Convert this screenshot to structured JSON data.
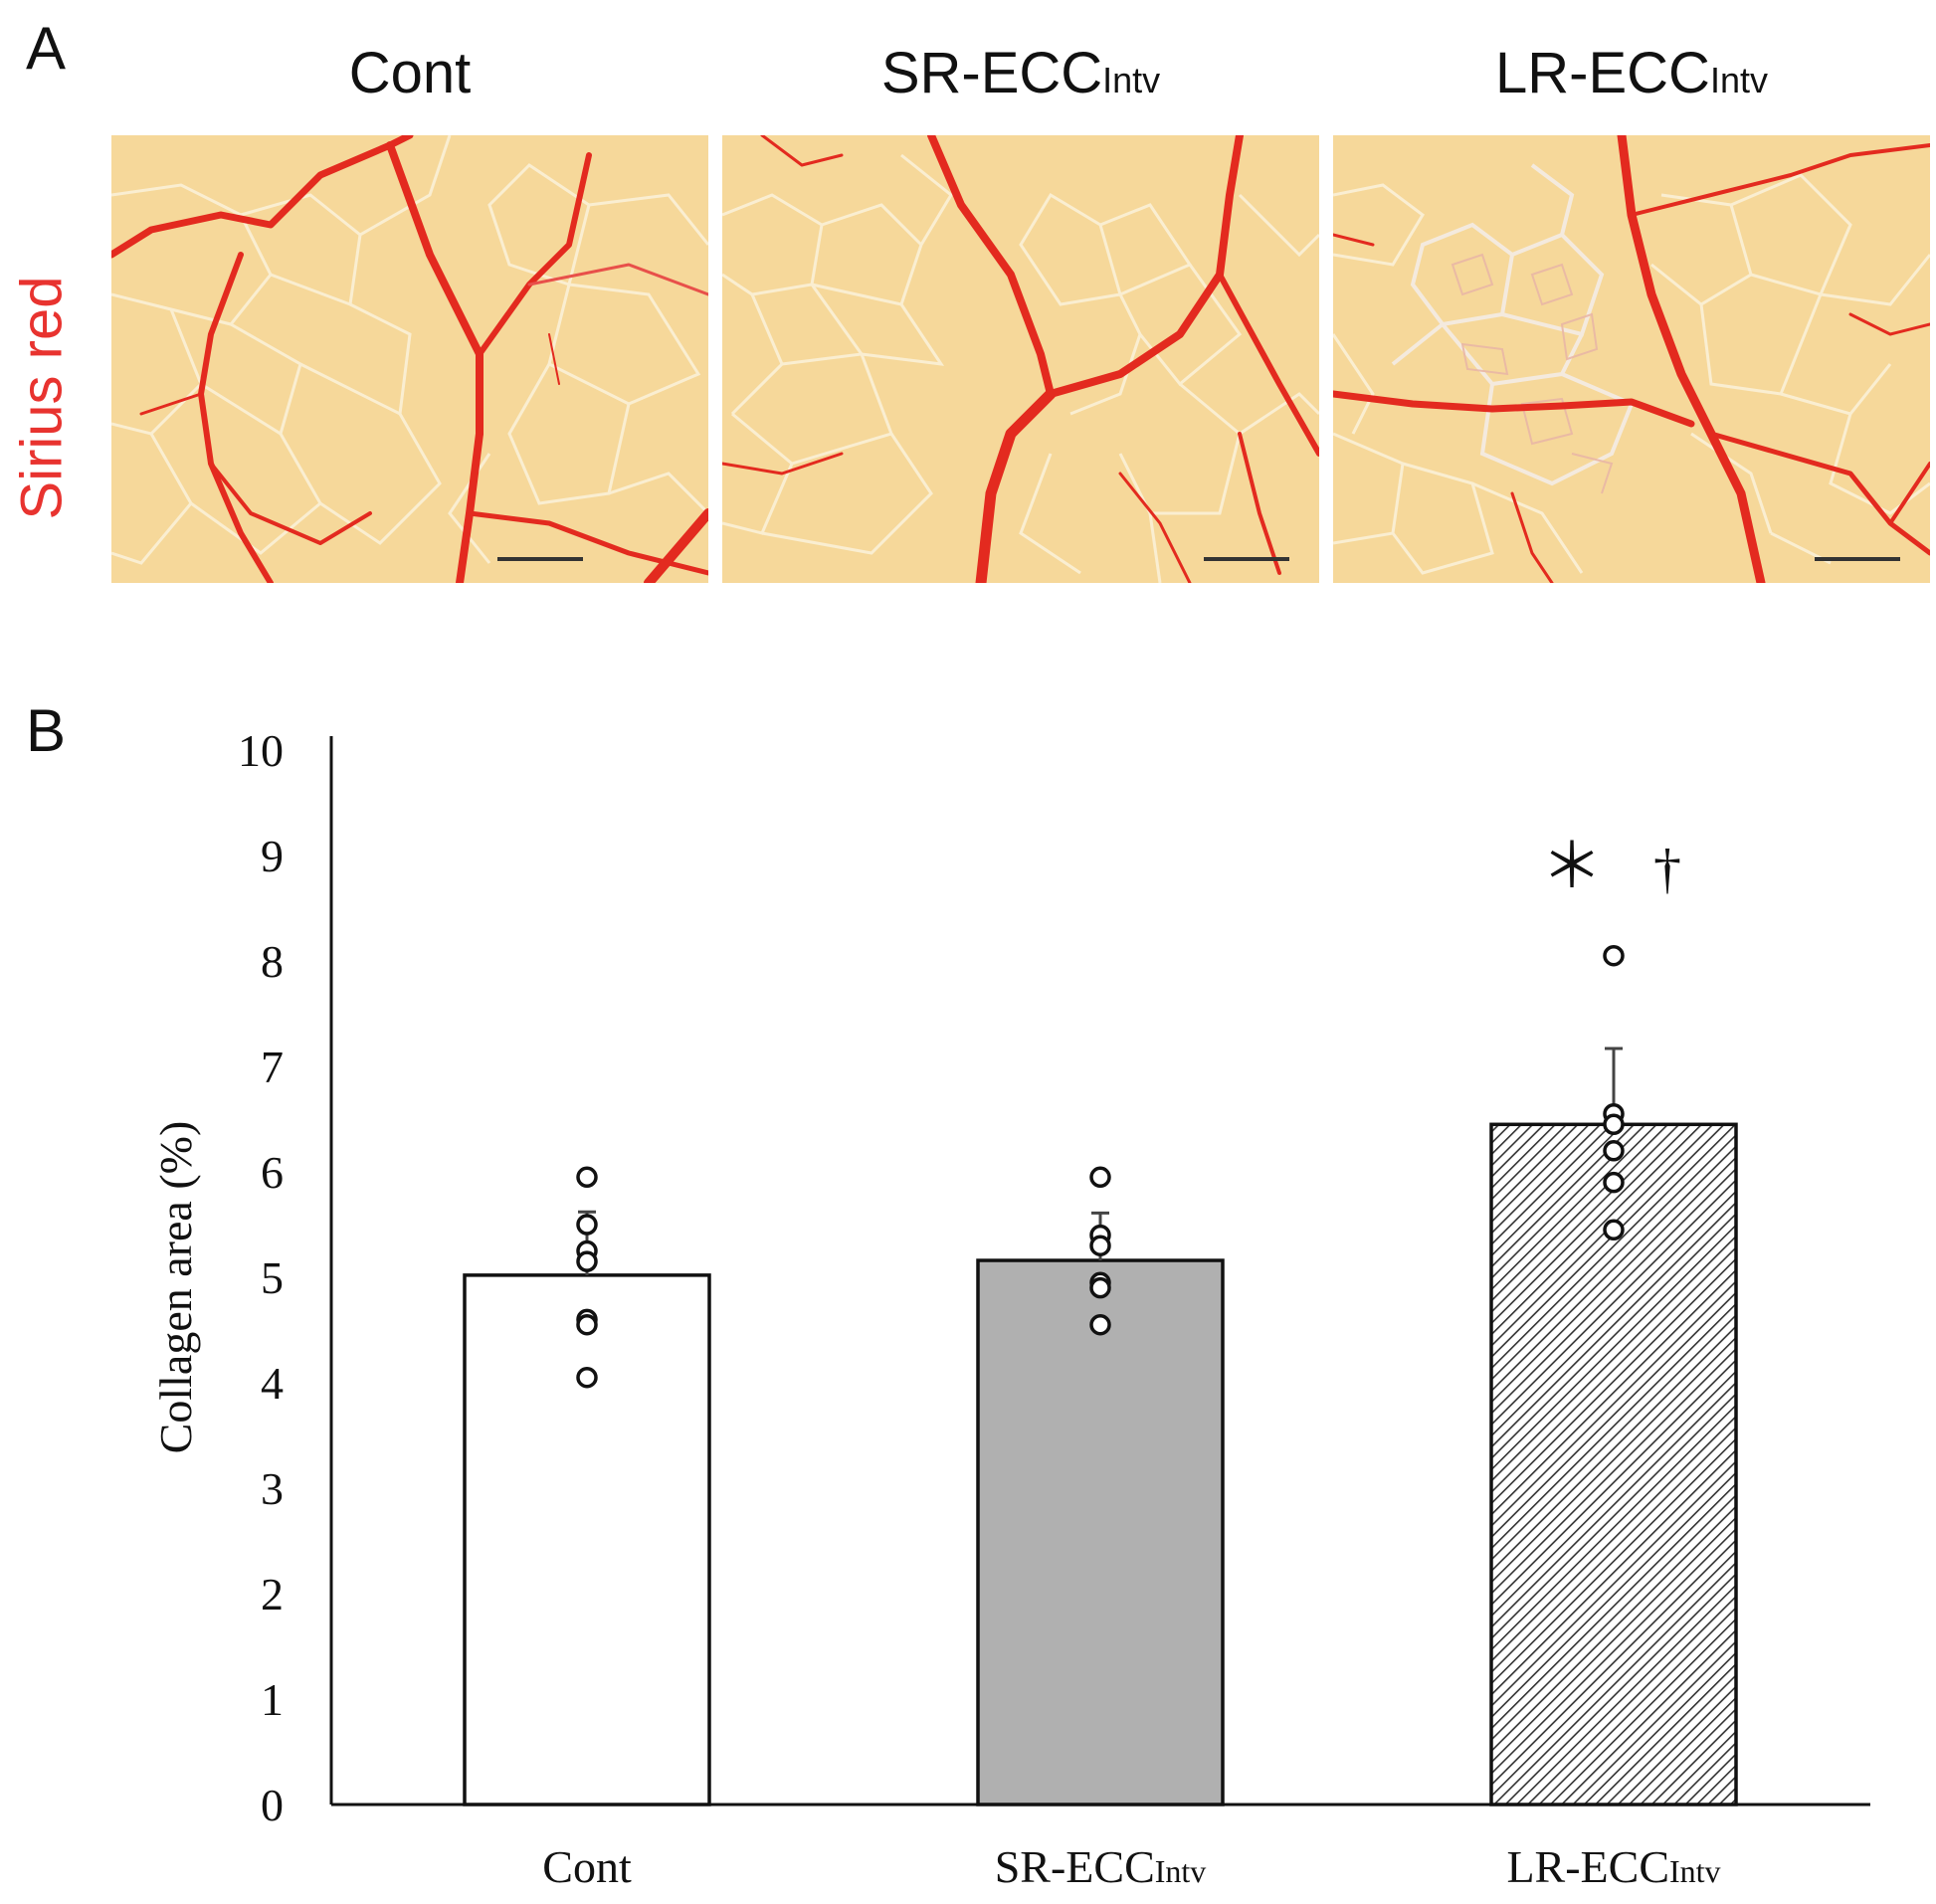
{
  "panel_a": {
    "letter": "A",
    "stain_label": "Sirius red",
    "stain_color": "#e8332f",
    "columns": [
      {
        "name": "Cont",
        "main": "Cont",
        "sub": ""
      },
      {
        "name": "SR-ECCIntv",
        "main": "SR-ECC",
        "sub": "Intv"
      },
      {
        "name": "LR-ECCIntv",
        "main": "LR-ECC",
        "sub": "Intv"
      }
    ]
  },
  "panel_b": {
    "letter": "B"
  },
  "chart_data": {
    "type": "bar",
    "title": "",
    "xlabel": "",
    "ylabel": "Collagen area (%)",
    "ylim": [
      0,
      10
    ],
    "yticks": [
      0,
      1,
      2,
      3,
      4,
      5,
      6,
      7,
      8,
      9,
      10
    ],
    "categories": [
      {
        "label": "Cont",
        "main": "Cont",
        "sub": ""
      },
      {
        "label": "SR-ECCIntv",
        "main": "SR-ECC",
        "sub": "Intv"
      },
      {
        "label": "LR-ECCIntv",
        "main": "LR-ECC",
        "sub": "Intv"
      }
    ],
    "values": [
      5.02,
      5.16,
      6.45
    ],
    "errors": [
      0.6,
      0.45,
      0.72
    ],
    "bar_fills": [
      "#ffffff",
      "#b0b0b0",
      "hatched"
    ],
    "points": [
      [
        5.95,
        5.5,
        5.25,
        5.15,
        4.6,
        4.55,
        4.05
      ],
      [
        5.95,
        5.4,
        5.3,
        4.95,
        4.9,
        4.55
      ],
      [
        8.05,
        6.55,
        6.45,
        6.2,
        5.9,
        5.45
      ]
    ],
    "annotations": [
      {
        "category": "LR-ECCIntv",
        "text": "＊",
        "meaning": "vs Cont"
      },
      {
        "category": "LR-ECCIntv",
        "text": "†",
        "meaning": "vs SR-ECCIntv"
      }
    ]
  }
}
